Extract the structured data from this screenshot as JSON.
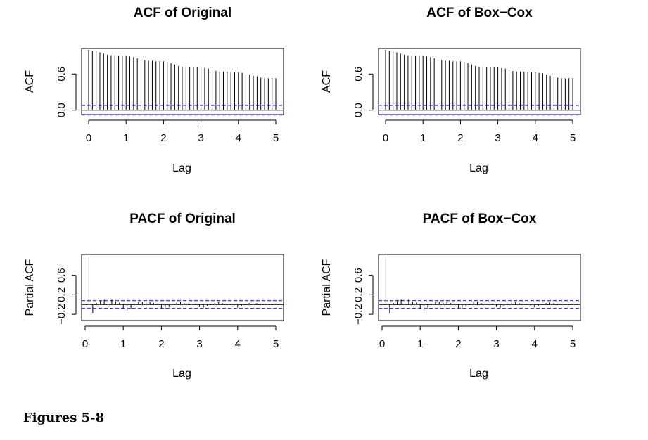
{
  "caption": "Figures 5-8",
  "chart_data": [
    {
      "type": "bar",
      "title": "ACF of Original",
      "xlabel": "Lag",
      "ylabel": "ACF",
      "xlim": [
        0,
        5
      ],
      "ylim": [
        -0.05,
        1.0
      ],
      "xticks": [
        "0",
        "1",
        "2",
        "3",
        "4",
        "5"
      ],
      "yticks": [
        "0.0",
        "0.6"
      ],
      "ytick_values": [
        0.0,
        0.6
      ],
      "bands": [
        0.08,
        -0.08
      ],
      "lags": [
        0,
        0.1,
        0.2,
        0.3,
        0.4,
        0.5,
        0.6,
        0.7,
        0.8,
        0.9,
        1.0,
        1.1,
        1.2,
        1.3,
        1.4,
        1.5,
        1.6,
        1.7,
        1.8,
        1.9,
        2.0,
        2.1,
        2.2,
        2.3,
        2.4,
        2.5,
        2.6,
        2.7,
        2.8,
        2.9,
        3.0,
        3.1,
        3.2,
        3.3,
        3.4,
        3.5,
        3.6,
        3.7,
        3.8,
        3.9,
        4.0,
        4.1,
        4.2,
        4.3,
        4.4,
        4.5,
        4.6,
        4.7,
        4.8,
        4.9,
        5.0
      ],
      "values": [
        1.0,
        0.99,
        0.98,
        0.96,
        0.94,
        0.92,
        0.91,
        0.9,
        0.9,
        0.9,
        0.9,
        0.89,
        0.88,
        0.86,
        0.84,
        0.83,
        0.82,
        0.82,
        0.81,
        0.81,
        0.81,
        0.8,
        0.78,
        0.76,
        0.73,
        0.72,
        0.71,
        0.71,
        0.71,
        0.71,
        0.71,
        0.7,
        0.69,
        0.67,
        0.65,
        0.64,
        0.64,
        0.64,
        0.63,
        0.63,
        0.63,
        0.62,
        0.61,
        0.59,
        0.57,
        0.56,
        0.54,
        0.53,
        0.53,
        0.53,
        0.53
      ]
    },
    {
      "type": "bar",
      "title": "ACF of Box−Cox",
      "xlabel": "Lag",
      "ylabel": "ACF",
      "xlim": [
        0,
        5
      ],
      "ylim": [
        -0.05,
        1.0
      ],
      "xticks": [
        "0",
        "1",
        "2",
        "3",
        "4",
        "5"
      ],
      "yticks": [
        "0.0",
        "0.6"
      ],
      "ytick_values": [
        0.0,
        0.6
      ],
      "bands": [
        0.08,
        -0.08
      ],
      "lags": [
        0,
        0.1,
        0.2,
        0.3,
        0.4,
        0.5,
        0.6,
        0.7,
        0.8,
        0.9,
        1.0,
        1.1,
        1.2,
        1.3,
        1.4,
        1.5,
        1.6,
        1.7,
        1.8,
        1.9,
        2.0,
        2.1,
        2.2,
        2.3,
        2.4,
        2.5,
        2.6,
        2.7,
        2.8,
        2.9,
        3.0,
        3.1,
        3.2,
        3.3,
        3.4,
        3.5,
        3.6,
        3.7,
        3.8,
        3.9,
        4.0,
        4.1,
        4.2,
        4.3,
        4.4,
        4.5,
        4.6,
        4.7,
        4.8,
        4.9,
        5.0
      ],
      "values": [
        1.0,
        0.99,
        0.98,
        0.96,
        0.94,
        0.92,
        0.91,
        0.9,
        0.9,
        0.9,
        0.9,
        0.89,
        0.88,
        0.86,
        0.84,
        0.83,
        0.82,
        0.82,
        0.81,
        0.81,
        0.81,
        0.8,
        0.78,
        0.76,
        0.73,
        0.72,
        0.71,
        0.71,
        0.71,
        0.71,
        0.71,
        0.7,
        0.69,
        0.67,
        0.65,
        0.64,
        0.64,
        0.64,
        0.63,
        0.63,
        0.63,
        0.62,
        0.61,
        0.59,
        0.57,
        0.56,
        0.54,
        0.53,
        0.53,
        0.53,
        0.53
      ]
    },
    {
      "type": "bar",
      "title": "PACF of Original",
      "xlabel": "Lag",
      "ylabel": "Partial ACF",
      "xlim": [
        0,
        5
      ],
      "ylim": [
        -0.3,
        1.0
      ],
      "xticks": [
        "0",
        "1",
        "2",
        "3",
        "4",
        "5"
      ],
      "yticks": [
        "−0.2",
        "0.2",
        "0.6"
      ],
      "ytick_values": [
        -0.2,
        0.2,
        0.6
      ],
      "bands": [
        0.08,
        -0.08
      ],
      "lags": [
        0.1,
        0.2,
        0.3,
        0.4,
        0.5,
        0.6,
        0.7,
        0.8,
        0.9,
        1.0,
        1.1,
        1.2,
        1.3,
        1.4,
        1.5,
        1.6,
        1.7,
        1.8,
        1.9,
        2.0,
        2.1,
        2.2,
        2.3,
        2.4,
        2.5,
        2.6,
        2.7,
        2.8,
        2.9,
        3.0,
        3.1,
        3.2,
        3.3,
        3.4,
        3.5,
        3.6,
        3.7,
        3.8,
        3.9,
        4.0,
        4.1,
        4.2,
        4.3,
        4.4,
        4.5,
        4.6,
        4.7,
        4.8,
        4.9,
        5.0
      ],
      "values": [
        0.99,
        -0.18,
        0.03,
        0.08,
        0.1,
        0.07,
        0.1,
        0.06,
        0.04,
        -0.1,
        -0.13,
        -0.08,
        0.02,
        0.05,
        0.06,
        0.04,
        0.05,
        0.03,
        0.02,
        -0.07,
        -0.09,
        -0.05,
        0.01,
        0.04,
        0.05,
        0.03,
        0.02,
        0.01,
        0.02,
        -0.05,
        -0.07,
        -0.03,
        0.02,
        0.04,
        0.05,
        0.03,
        0.01,
        0.0,
        -0.02,
        -0.06,
        -0.04,
        -0.01,
        0.03,
        0.04,
        0.03,
        0.02,
        0.01,
        0.0,
        -0.01,
        0.02
      ]
    },
    {
      "type": "bar",
      "title": "PACF of Box−Cox",
      "xlabel": "Lag",
      "ylabel": "Partial ACF",
      "xlim": [
        0,
        5
      ],
      "ylim": [
        -0.3,
        1.0
      ],
      "xticks": [
        "0",
        "1",
        "2",
        "3",
        "4",
        "5"
      ],
      "yticks": [
        "−0.2",
        "0.2",
        "0.6"
      ],
      "ytick_values": [
        -0.2,
        0.2,
        0.6
      ],
      "bands": [
        0.08,
        -0.08
      ],
      "lags": [
        0.1,
        0.2,
        0.3,
        0.4,
        0.5,
        0.6,
        0.7,
        0.8,
        0.9,
        1.0,
        1.1,
        1.2,
        1.3,
        1.4,
        1.5,
        1.6,
        1.7,
        1.8,
        1.9,
        2.0,
        2.1,
        2.2,
        2.3,
        2.4,
        2.5,
        2.6,
        2.7,
        2.8,
        2.9,
        3.0,
        3.1,
        3.2,
        3.3,
        3.4,
        3.5,
        3.6,
        3.7,
        3.8,
        3.9,
        4.0,
        4.1,
        4.2,
        4.3,
        4.4,
        4.5,
        4.6,
        4.7,
        4.8,
        4.9,
        5.0
      ],
      "values": [
        0.99,
        -0.18,
        0.03,
        0.08,
        0.1,
        0.07,
        0.1,
        0.06,
        0.04,
        -0.1,
        -0.13,
        -0.08,
        0.02,
        0.05,
        0.06,
        0.04,
        0.05,
        0.03,
        0.02,
        -0.07,
        -0.09,
        -0.05,
        0.01,
        0.04,
        0.05,
        0.03,
        0.02,
        0.01,
        0.02,
        -0.05,
        -0.07,
        -0.03,
        0.02,
        0.04,
        0.05,
        0.03,
        0.01,
        0.0,
        -0.02,
        -0.06,
        -0.04,
        -0.01,
        0.03,
        0.04,
        0.03,
        0.02,
        0.01,
        0.0,
        -0.01,
        0.02
      ]
    }
  ]
}
